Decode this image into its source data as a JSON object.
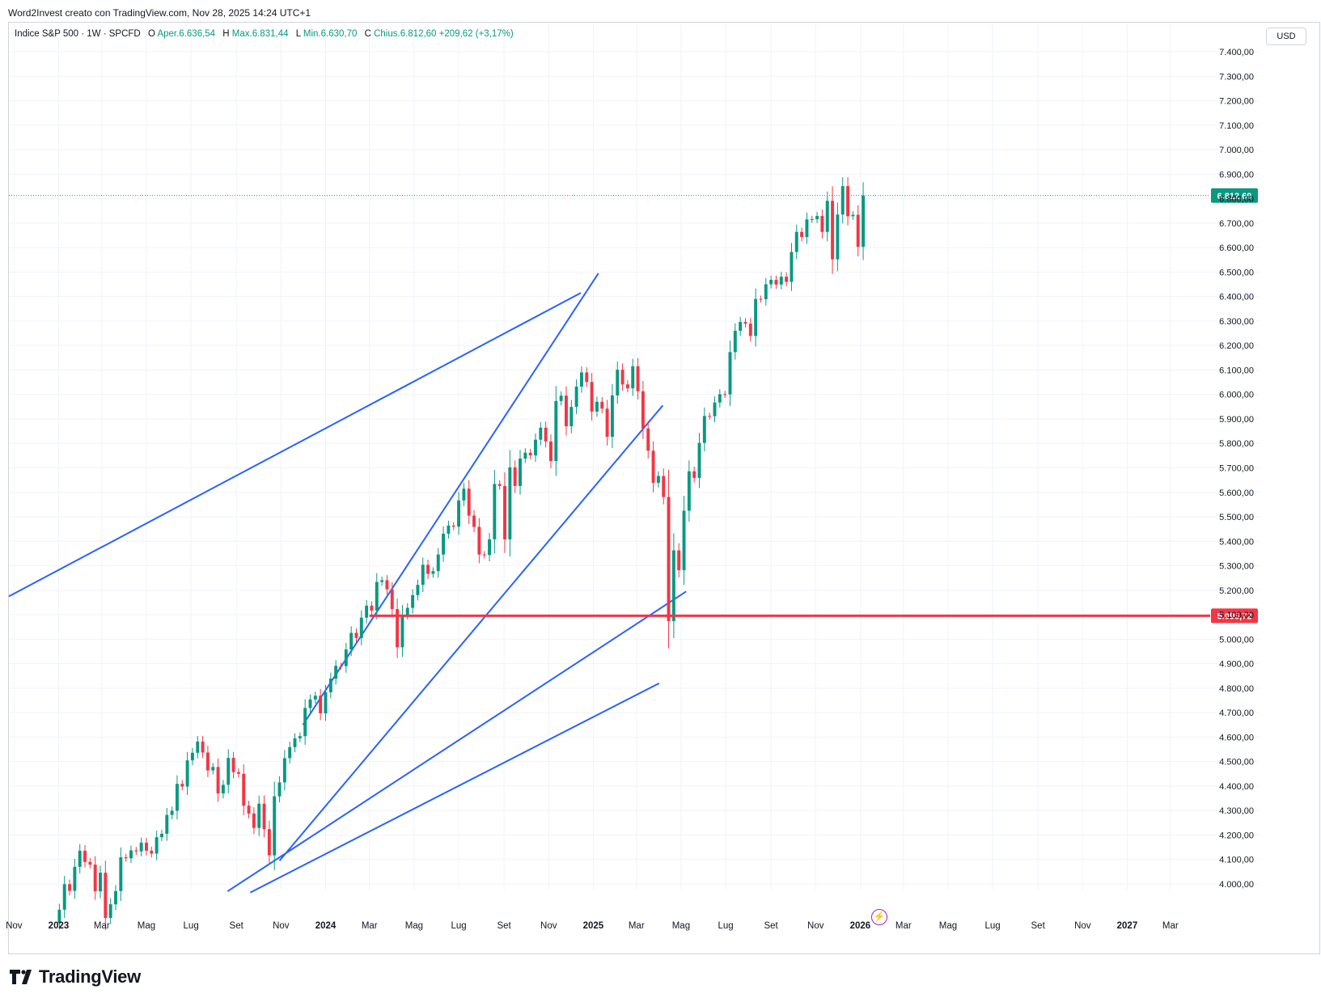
{
  "credit_line": "Word2Invest creato con TradingView.com, Nov 28, 2025 14:24 UTC+1",
  "legend": {
    "symbol": "Indice S&P 500 · 1W · SPCFD",
    "open_label": "O",
    "open_value": "Aper.6.636,54",
    "high_label": "H",
    "high_value": "Max.6.831,44",
    "low_label": "L",
    "low_value": "Min.6.630,70",
    "close_label": "C",
    "close_value": "Chius.6.812,60",
    "change": "+209,62 (+3,17%)"
  },
  "currency": "USD",
  "logo_text": "TradingView",
  "colors": {
    "up": "#089981",
    "down": "#f23645",
    "trendline": "#2962ff",
    "support": "#f23645",
    "grid": "#f0f3fa"
  },
  "chart_data": {
    "type": "candlestick",
    "interval": "1W",
    "y_axis": {
      "min": 4000,
      "max": 7400,
      "ticks": [
        "4.000,00",
        "4.100,00",
        "4.200,00",
        "4.300,00",
        "4.400,00",
        "4.500,00",
        "4.600,00",
        "4.700,00",
        "4.800,00",
        "4.900,00",
        "5.000,00",
        "5.100,00",
        "5.200,00",
        "5.300,00",
        "5.400,00",
        "5.500,00",
        "5.600,00",
        "5.700,00",
        "5.800,00",
        "5.900,00",
        "6.000,00",
        "6.100,00",
        "6.200,00",
        "6.300,00",
        "6.400,00",
        "6.500,00",
        "6.600,00",
        "6.700,00",
        "6.800,00",
        "6.900,00",
        "7.000,00",
        "7.100,00",
        "7.200,00",
        "7.300,00",
        "7.400,00"
      ]
    },
    "x_axis": {
      "range": [
        "2022-10-25",
        "2027-04-20"
      ],
      "ticks": [
        {
          "label": "Nov",
          "date": "2022-11-01",
          "bold": false
        },
        {
          "label": "2023",
          "date": "2023-01-01",
          "bold": true
        },
        {
          "label": "Mar",
          "date": "2023-03-01",
          "bold": false
        },
        {
          "label": "Mag",
          "date": "2023-05-01",
          "bold": false
        },
        {
          "label": "Lug",
          "date": "2023-07-01",
          "bold": false
        },
        {
          "label": "Set",
          "date": "2023-09-01",
          "bold": false
        },
        {
          "label": "Nov",
          "date": "2023-11-01",
          "bold": false
        },
        {
          "label": "2024",
          "date": "2024-01-01",
          "bold": true
        },
        {
          "label": "Mar",
          "date": "2024-03-01",
          "bold": false
        },
        {
          "label": "Mag",
          "date": "2024-05-01",
          "bold": false
        },
        {
          "label": "Lug",
          "date": "2024-07-01",
          "bold": false
        },
        {
          "label": "Set",
          "date": "2024-09-01",
          "bold": false
        },
        {
          "label": "Nov",
          "date": "2024-11-01",
          "bold": false
        },
        {
          "label": "2025",
          "date": "2025-01-01",
          "bold": true
        },
        {
          "label": "Mar",
          "date": "2025-03-01",
          "bold": false
        },
        {
          "label": "Mag",
          "date": "2025-05-01",
          "bold": false
        },
        {
          "label": "Lug",
          "date": "2025-07-01",
          "bold": false
        },
        {
          "label": "Set",
          "date": "2025-09-01",
          "bold": false
        },
        {
          "label": "Nov",
          "date": "2025-11-01",
          "bold": false
        },
        {
          "label": "2026",
          "date": "2026-01-01",
          "bold": true
        },
        {
          "label": "Mar",
          "date": "2026-03-01",
          "bold": false
        },
        {
          "label": "Mag",
          "date": "2026-05-01",
          "bold": false
        },
        {
          "label": "Lug",
          "date": "2026-07-01",
          "bold": false
        },
        {
          "label": "Set",
          "date": "2026-09-01",
          "bold": false
        },
        {
          "label": "Nov",
          "date": "2026-11-01",
          "bold": false
        },
        {
          "label": "2027",
          "date": "2027-01-01",
          "bold": true
        },
        {
          "label": "Mar",
          "date": "2027-03-01",
          "bold": false
        }
      ]
    },
    "week_start": "2023-01-02",
    "closes": [
      3895,
      3999,
      3972,
      4070,
      4136,
      4090,
      4079,
      3970,
      4046,
      3861,
      3917,
      3971,
      4109,
      4105,
      4137,
      4133,
      4169,
      4136,
      4124,
      4191,
      4205,
      4282,
      4299,
      4409,
      4398,
      4505,
      4536,
      4582,
      4537,
      4464,
      4478,
      4370,
      4405,
      4515,
      4457,
      4450,
      4320,
      4288,
      4229,
      4328,
      4224,
      4117,
      4358,
      4415,
      4514,
      4559,
      4595,
      4604,
      4719,
      4754,
      4769,
      4697,
      4783,
      4839,
      4891,
      4890,
      4958,
      5026,
      5005,
      5088,
      5137,
      5117,
      5234,
      5241,
      5204,
      5123,
      4967,
      5100,
      5128,
      5180,
      5222,
      5304,
      5267,
      5278,
      5346,
      5431,
      5464,
      5460,
      5567,
      5615,
      5505,
      5459,
      5346,
      5344,
      5408,
      5634,
      5626,
      5408,
      5702,
      5626,
      5738,
      5762,
      5751,
      5815,
      5864,
      5808,
      5728,
      5973,
      5995,
      5870,
      5949,
      6032,
      6090,
      6051,
      5930,
      5970,
      5942,
      5827,
      5996,
      6101,
      6041,
      6025,
      6115,
      6013,
      5861,
      5770,
      5639,
      5667,
      5581,
      5074,
      5363,
      5282,
      5525,
      5686,
      5659,
      5802,
      5912,
      5911,
      5967,
      6001,
      6000,
      6173,
      6260,
      6296,
      6289,
      6239,
      6390,
      6389,
      6450,
      6468,
      6449,
      6481,
      6460,
      6582,
      6664,
      6643,
      6715,
      6716,
      6729,
      6664,
      6791,
      6552,
      6735,
      6851,
      6728,
      6734,
      6603,
      6813
    ],
    "trendlines": [
      {
        "from": [
          "2022-10-25",
          5175
        ],
        "to": [
          "2024-12-15",
          6415
        ]
      },
      {
        "from": [
          "2023-12-01",
          4650
        ],
        "to": [
          "2025-01-08",
          6495
        ]
      },
      {
        "from": [
          "2023-10-30",
          4095
        ],
        "to": [
          "2025-04-06",
          5955
        ]
      },
      {
        "from": [
          "2023-08-20",
          3970
        ],
        "to": [
          "2025-05-08",
          5195
        ]
      },
      {
        "from": [
          "2023-09-20",
          3965
        ],
        "to": [
          "2025-04-01",
          4820
        ]
      }
    ],
    "horizontal_line": {
      "price": 5095.72,
      "label": "5.095,72",
      "from": "2024-03-01"
    },
    "price_line": {
      "price": 6812.6,
      "label": "6.812,60"
    }
  }
}
